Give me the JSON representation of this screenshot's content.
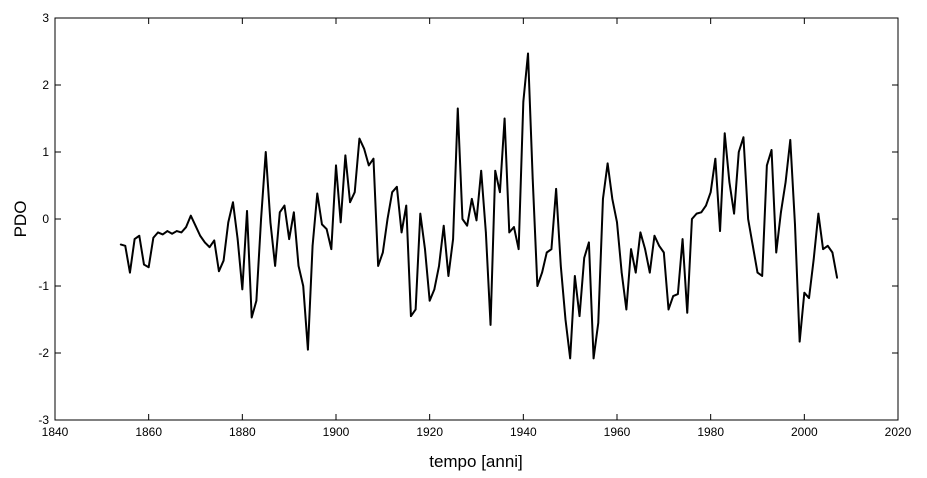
{
  "chart_data": {
    "type": "line",
    "title": "",
    "xlabel": "tempo [anni]",
    "ylabel": "PDO",
    "xlim": [
      1840,
      2020
    ],
    "ylim": [
      -3,
      3
    ],
    "xticks": [
      1840,
      1860,
      1880,
      1900,
      1920,
      1940,
      1960,
      1980,
      2000,
      2020
    ],
    "yticks": [
      -3,
      -2,
      -1,
      0,
      1,
      2,
      3
    ],
    "grid": false,
    "line_color": "#000000",
    "series": [
      {
        "x": [
          1854,
          1855,
          1856,
          1857,
          1858,
          1859,
          1860,
          1861,
          1862,
          1863,
          1864,
          1865,
          1866,
          1867,
          1868,
          1869,
          1870,
          1871,
          1872,
          1873,
          1874,
          1875,
          1876,
          1877,
          1878,
          1879,
          1880,
          1881,
          1882,
          1883,
          1884,
          1885,
          1886,
          1887,
          1888,
          1889,
          1890,
          1891,
          1892,
          1893,
          1894,
          1895,
          1896,
          1897,
          1898,
          1899,
          1900,
          1901,
          1902,
          1903,
          1904,
          1905,
          1906,
          1907,
          1908,
          1909,
          1910,
          1911,
          1912,
          1913,
          1914,
          1915,
          1916,
          1917,
          1918,
          1919,
          1920,
          1921,
          1922,
          1923,
          1924,
          1925,
          1926,
          1927,
          1928,
          1929,
          1930,
          1931,
          1932,
          1933,
          1934,
          1935,
          1936,
          1937,
          1938,
          1939,
          1940,
          1941,
          1942,
          1943,
          1944,
          1945,
          1946,
          1947,
          1948,
          1949,
          1950,
          1951,
          1952,
          1953,
          1954,
          1955,
          1956,
          1957,
          1958,
          1959,
          1960,
          1961,
          1962,
          1963,
          1964,
          1965,
          1966,
          1967,
          1968,
          1969,
          1970,
          1971,
          1972,
          1973,
          1974,
          1975,
          1976,
          1977,
          1978,
          1979,
          1980,
          1981,
          1982,
          1983,
          1984,
          1985,
          1986,
          1987,
          1988,
          1989,
          1990,
          1991,
          1992,
          1993,
          1994,
          1995,
          1996,
          1997,
          1998,
          1999,
          2000,
          2001,
          2002,
          2003,
          2004,
          2005,
          2006,
          2007
        ],
        "y": [
          -0.38,
          -0.4,
          -0.8,
          -0.3,
          -0.25,
          -0.68,
          -0.72,
          -0.28,
          -0.2,
          -0.23,
          -0.18,
          -0.22,
          -0.18,
          -0.2,
          -0.12,
          0.05,
          -0.1,
          -0.25,
          -0.35,
          -0.42,
          -0.32,
          -0.78,
          -0.62,
          -0.05,
          0.25,
          -0.3,
          -1.05,
          0.12,
          -1.47,
          -1.22,
          0.0,
          1.0,
          -0.05,
          -0.7,
          0.1,
          0.2,
          -0.3,
          0.1,
          -0.7,
          -1.0,
          -1.95,
          -0.4,
          0.38,
          -0.08,
          -0.15,
          -0.45,
          0.8,
          -0.05,
          0.95,
          0.25,
          0.4,
          1.2,
          1.05,
          0.8,
          0.9,
          -0.7,
          -0.5,
          0.0,
          0.4,
          0.48,
          -0.2,
          0.2,
          -1.45,
          -1.35,
          0.08,
          -0.45,
          -1.22,
          -1.05,
          -0.7,
          -0.1,
          -0.85,
          -0.3,
          1.65,
          0.0,
          -0.1,
          0.3,
          -0.02,
          0.72,
          -0.2,
          -1.58,
          0.72,
          0.4,
          1.5,
          -0.2,
          -0.12,
          -0.45,
          1.75,
          2.47,
          0.6,
          -1.0,
          -0.8,
          -0.5,
          -0.45,
          0.45,
          -0.7,
          -1.5,
          -2.08,
          -0.85,
          -1.45,
          -0.58,
          -0.35,
          -2.08,
          -1.55,
          0.3,
          0.83,
          0.3,
          -0.05,
          -0.8,
          -1.35,
          -0.45,
          -0.8,
          -0.2,
          -0.45,
          -0.8,
          -0.25,
          -0.4,
          -0.5,
          -1.35,
          -1.15,
          -1.12,
          -0.3,
          -1.4,
          0.0,
          0.08,
          0.1,
          0.2,
          0.4,
          0.9,
          -0.18,
          1.28,
          0.55,
          0.08,
          1.0,
          1.22,
          0.0,
          -0.4,
          -0.8,
          -0.85,
          0.8,
          1.03,
          -0.5,
          0.1,
          0.55,
          1.18,
          -0.08,
          -1.83,
          -1.1,
          -1.18,
          -0.6,
          0.08,
          -0.45,
          -0.4,
          -0.5,
          -0.88
        ]
      }
    ]
  }
}
